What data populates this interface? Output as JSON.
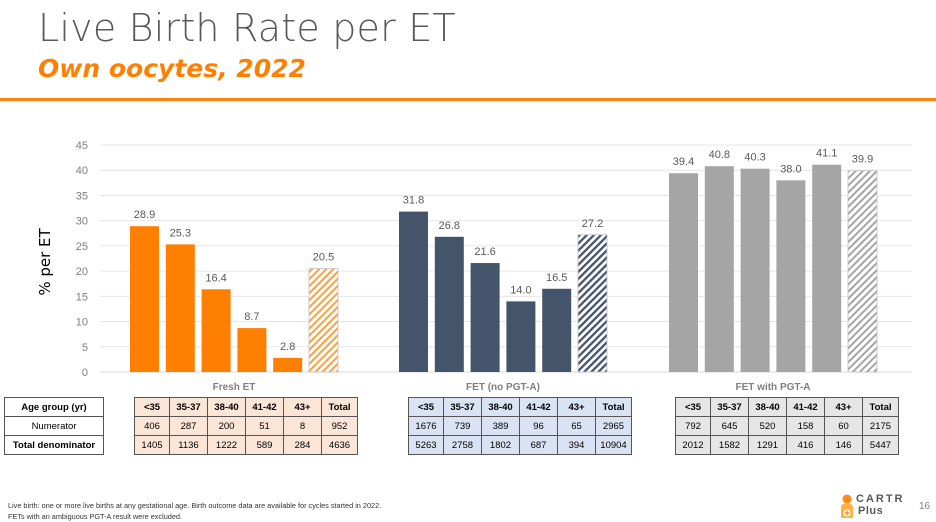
{
  "slide": {
    "title": "Live Birth Rate per ET",
    "subtitle": "Own oocytes, 2022",
    "page_number": "16",
    "footnote_lines": [
      "Live birth: one or more live births at any gestational age. Birth outcome data are available for cycles started in 2022.",
      "FETs with an ambiguous PGT-A result were excluded."
    ],
    "logo": {
      "line1": "CARTR",
      "line2": "Plus"
    },
    "accent_color": "#ff7f0e"
  },
  "chart_data": {
    "type": "bar",
    "title": "",
    "xlabel": "",
    "ylabel": "% per ET",
    "ylim": [
      0,
      45
    ],
    "yticks": [
      0,
      5,
      10,
      15,
      20,
      25,
      30,
      35,
      40,
      45
    ],
    "grid": true,
    "categories": [
      "<35",
      "35-37",
      "38-40",
      "41-42",
      "43+",
      "Total"
    ],
    "groups": [
      {
        "name": "Fresh ET",
        "color": "#ff7f00",
        "total_style": "hatched",
        "values": [
          28.9,
          25.3,
          16.4,
          8.7,
          2.8,
          20.5
        ],
        "labels": [
          "28.9",
          "25.3",
          "16.4",
          "8.7",
          "2.8",
          "20.5"
        ]
      },
      {
        "name": "FET (no PGT-A)",
        "color": "#44546a",
        "total_style": "hatched",
        "values": [
          31.8,
          26.8,
          21.6,
          14.0,
          16.5,
          27.2
        ],
        "labels": [
          "31.8",
          "26.8",
          "21.6",
          "14.0",
          "16.5",
          "27.2"
        ]
      },
      {
        "name": "FET with PGT-A",
        "color": "#a5a5a5",
        "total_style": "hatched",
        "values": [
          39.4,
          40.8,
          40.3,
          38.0,
          41.1,
          39.9
        ],
        "labels": [
          "39.4",
          "40.8",
          "40.3",
          "38.0",
          "41.1",
          "39.9"
        ]
      }
    ]
  },
  "tables": {
    "row_headers": [
      "Age group (yr)",
      "Numerator",
      "Total denominator"
    ],
    "fresh": {
      "header": [
        "<35",
        "35-37",
        "38-40",
        "41-42",
        "43+",
        "Total"
      ],
      "numerator": [
        "406",
        "287",
        "200",
        "51",
        "8",
        "952"
      ],
      "denominator": [
        "1405",
        "1136",
        "1222",
        "589",
        "284",
        "4636"
      ]
    },
    "fet": {
      "header": [
        "<35",
        "35-37",
        "38-40",
        "41-42",
        "43+",
        "Total"
      ],
      "numerator": [
        "1676",
        "739",
        "389",
        "96",
        "65",
        "2965"
      ],
      "denominator": [
        "5263",
        "2758",
        "1802",
        "687",
        "394",
        "10904"
      ]
    },
    "pgt": {
      "header": [
        "<35",
        "35-37",
        "38-40",
        "41-42",
        "43+",
        "Total"
      ],
      "numerator": [
        "792",
        "645",
        "520",
        "158",
        "60",
        "2175"
      ],
      "denominator": [
        "2012",
        "1582",
        "1291",
        "416",
        "146",
        "5447"
      ]
    }
  }
}
